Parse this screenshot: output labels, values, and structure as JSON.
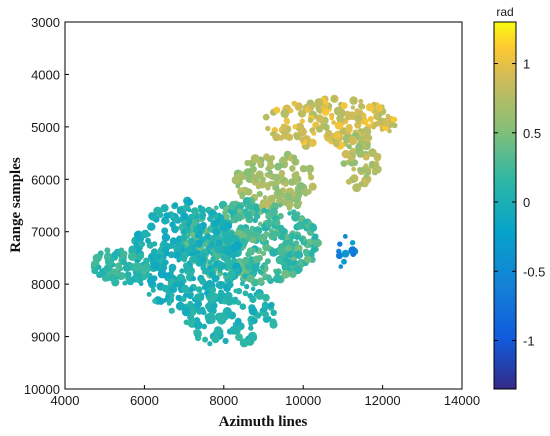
{
  "chart_data": {
    "type": "scatter",
    "title": "",
    "xlabel": "Azimuth lines",
    "ylabel": "Range samples",
    "xlim": [
      4000,
      14000
    ],
    "ylim": [
      3000,
      10000
    ],
    "y_axis_reversed": true,
    "xticks": [
      4000,
      6000,
      8000,
      10000,
      12000,
      14000
    ],
    "yticks": [
      3000,
      4000,
      5000,
      6000,
      7000,
      8000,
      9000,
      10000
    ],
    "grid": false,
    "colorbar": {
      "unit": "rad",
      "range": [
        -1.35,
        1.3
      ],
      "ticks": [
        -1,
        -0.5,
        0,
        0.5,
        1
      ],
      "colormap": "parula",
      "location": "right"
    },
    "point_groups": [
      {
        "region": "upper-northeast-ridge",
        "x": [
          9000,
          12400
        ],
        "y": [
          4450,
          5400
        ],
        "value_range": [
          0.7,
          1.1
        ]
      },
      {
        "region": "eastern-islands",
        "x": [
          11000,
          11900
        ],
        "y": [
          5000,
          6200
        ],
        "value_range": [
          0.55,
          0.9
        ]
      },
      {
        "region": "central-orange-block",
        "x": [
          8300,
          10300
        ],
        "y": [
          5500,
          6600
        ],
        "value_range": [
          0.5,
          0.8
        ]
      },
      {
        "region": "central-green-body",
        "x": [
          6800,
          10400
        ],
        "y": [
          6400,
          8000
        ],
        "value_range": [
          0.05,
          0.45
        ]
      },
      {
        "region": "western-cyan-area",
        "x": [
          5700,
          8400
        ],
        "y": [
          6400,
          8600
        ],
        "value_range": [
          -0.15,
          0.15
        ]
      },
      {
        "region": "southwest-arm",
        "x": [
          4700,
          6100
        ],
        "y": [
          7300,
          8000
        ],
        "value_range": [
          0.0,
          0.3
        ]
      },
      {
        "region": "southern-tail",
        "x": [
          7000,
          9300
        ],
        "y": [
          8000,
          9200
        ],
        "value_range": [
          -0.1,
          0.2
        ]
      },
      {
        "region": "eastern-blue-spot",
        "x": [
          10800,
          11300
        ],
        "y": [
          7000,
          7700
        ],
        "value_range": [
          -0.8,
          -0.2
        ]
      }
    ]
  }
}
